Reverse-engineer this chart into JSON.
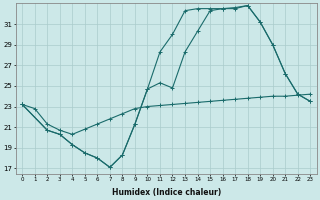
{
  "xlabel": "Humidex (Indice chaleur)",
  "xlim": [
    -0.5,
    23.5
  ],
  "ylim": [
    16.5,
    33
  ],
  "yticks": [
    17,
    19,
    21,
    23,
    25,
    27,
    29,
    31
  ],
  "xticks": [
    0,
    1,
    2,
    3,
    4,
    5,
    6,
    7,
    8,
    9,
    10,
    11,
    12,
    13,
    14,
    15,
    16,
    17,
    18,
    19,
    20,
    21,
    22,
    23
  ],
  "bg_color": "#cce8e8",
  "grid_color": "#aacccc",
  "line_color": "#1a6b6b",
  "line1_x": [
    0,
    1,
    2,
    3,
    4,
    5,
    6,
    7,
    8,
    9,
    10,
    11,
    12,
    13,
    14,
    15,
    16,
    17,
    18,
    19,
    20,
    21,
    22,
    23
  ],
  "line1_y": [
    23.2,
    22.8,
    21.3,
    20.7,
    20.3,
    20.8,
    21.3,
    21.8,
    22.3,
    22.8,
    23.0,
    23.1,
    23.2,
    23.3,
    23.4,
    23.5,
    23.6,
    23.7,
    23.8,
    23.9,
    24.0,
    24.0,
    24.1,
    24.2
  ],
  "line2_x": [
    0,
    2,
    3,
    4,
    5,
    6,
    7,
    8,
    9,
    10,
    11,
    12,
    13,
    14,
    15,
    16,
    17,
    18,
    19,
    20,
    21,
    22,
    23
  ],
  "line2_y": [
    23.2,
    20.7,
    20.3,
    19.3,
    18.5,
    18.0,
    17.1,
    18.3,
    21.3,
    24.7,
    28.3,
    30.0,
    32.3,
    32.5,
    32.5,
    32.5,
    32.6,
    32.8,
    31.2,
    29.0,
    26.2,
    24.2,
    23.5
  ],
  "line3_x": [
    0,
    2,
    3,
    4,
    5,
    6,
    7,
    8,
    9,
    10,
    11,
    12,
    13,
    14,
    15,
    16,
    17,
    18,
    19,
    20,
    21,
    22,
    23
  ],
  "line3_y": [
    23.2,
    20.7,
    20.3,
    19.3,
    18.5,
    18.0,
    17.1,
    18.3,
    21.3,
    24.7,
    25.3,
    24.8,
    28.3,
    30.3,
    32.3,
    32.5,
    32.5,
    32.8,
    31.2,
    29.0,
    26.2,
    24.2,
    23.5
  ]
}
